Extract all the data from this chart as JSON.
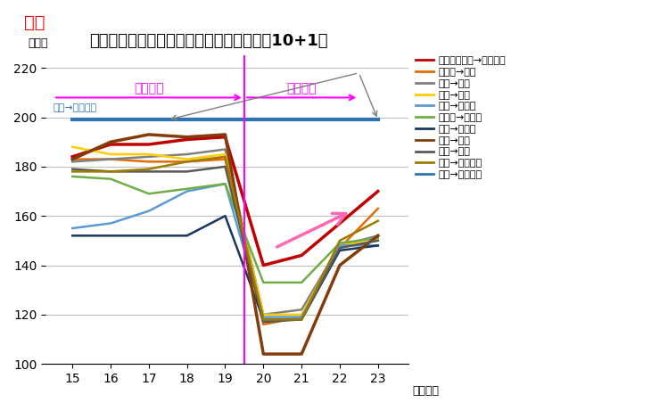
{
  "title": "通勤電車の混雑率の推移　（関東ワースト10+1）",
  "ylabel": "（％）",
  "xlabel_suffix": "（年度）",
  "years": [
    15,
    16,
    17,
    18,
    19,
    20,
    21,
    22,
    23
  ],
  "ylim": [
    100,
    225
  ],
  "yticks": [
    100,
    120,
    140,
    160,
    180,
    200,
    220
  ],
  "series": [
    {
      "label": "赤土小学校前→西日暮里",
      "color": "#C00000",
      "linewidth": 2.5,
      "values": [
        184,
        189,
        189,
        191,
        192,
        140,
        144,
        157,
        170
      ]
    },
    {
      "label": "三ノ輪→入谷",
      "color": "#E36C09",
      "linewidth": 1.8,
      "values": [
        183,
        183,
        182,
        182,
        183,
        116,
        119,
        147,
        163
      ]
    },
    {
      "label": "板橋→池袋",
      "color": "#808080",
      "linewidth": 1.8,
      "values": [
        182,
        183,
        184,
        185,
        187,
        120,
        122,
        148,
        152
      ]
    },
    {
      "label": "中野→新宿",
      "color": "#FFCC00",
      "linewidth": 1.8,
      "values": [
        188,
        185,
        185,
        183,
        185,
        120,
        120,
        148,
        150
      ]
    },
    {
      "label": "青井→北千住",
      "color": "#5B9BD5",
      "linewidth": 1.8,
      "values": [
        155,
        157,
        162,
        170,
        173,
        119,
        119,
        148,
        148
      ]
    },
    {
      "label": "東浦和→南浦和",
      "color": "#70AD47",
      "linewidth": 1.8,
      "values": [
        176,
        175,
        169,
        171,
        173,
        133,
        133,
        149,
        151
      ]
    },
    {
      "label": "中井→東中野",
      "color": "#17375E",
      "linewidth": 1.8,
      "values": [
        152,
        152,
        152,
        152,
        160,
        118,
        118,
        146,
        148
      ]
    },
    {
      "label": "川崎→品川",
      "color": "#843C0C",
      "linewidth": 2.5,
      "values": [
        183,
        190,
        193,
        192,
        193,
        104,
        104,
        140,
        152
      ]
    },
    {
      "label": "川口→赤羽",
      "color": "#595959",
      "linewidth": 1.8,
      "values": [
        179,
        178,
        178,
        178,
        180,
        117,
        118,
        147,
        150
      ]
    },
    {
      "label": "町屋→西日暮里",
      "color": "#9E7B00",
      "linewidth": 1.8,
      "values": [
        178,
        178,
        179,
        182,
        184,
        118,
        118,
        150,
        158
      ]
    },
    {
      "label": "木場→門前仲町",
      "color": "#2E75B6",
      "linewidth": 3.0,
      "values": [
        199,
        199,
        199,
        199,
        199,
        199,
        199,
        199,
        199
      ]
    }
  ],
  "vline_x": 19.5,
  "vline_color": "#FF00FF",
  "corona_mae_label": "コロナ前",
  "corona_go_label": "コロナ後",
  "annotation_label": "木場→門前仲町",
  "annotation_color": "#2E75B6",
  "ma_color": "#FF0000",
  "ma_text": "マ！",
  "background_color": "#FFFFFF",
  "grid_color": "#BFBFBF"
}
